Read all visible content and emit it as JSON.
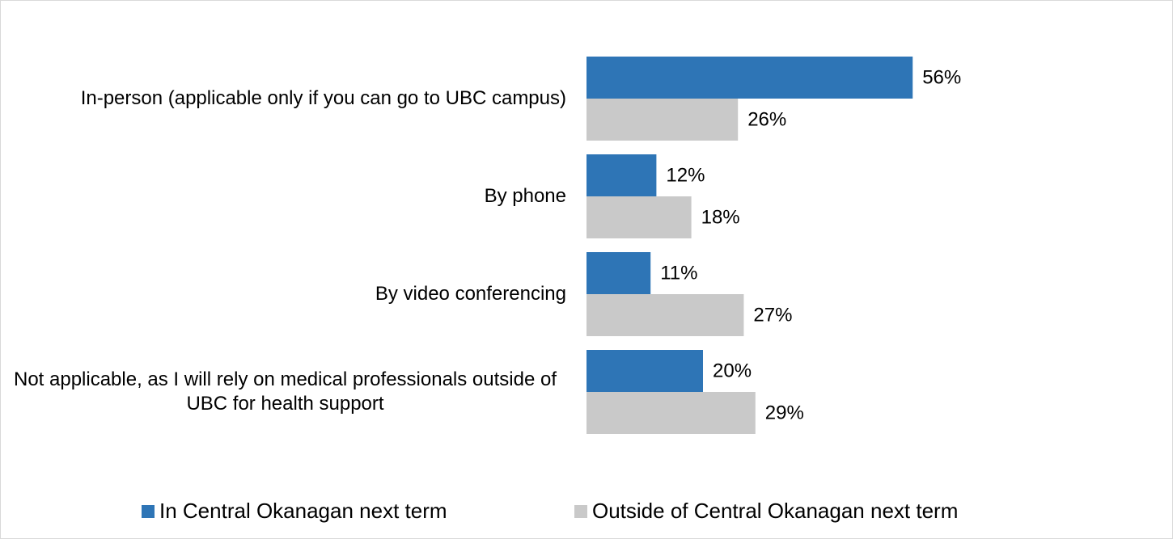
{
  "chart_data": {
    "type": "hbar",
    "categories": [
      "In-person (applicable only if you can go to UBC campus)",
      "By phone",
      "By video conferencing",
      "Not applicable, as I will rely on medical professionals outside of UBC for health support"
    ],
    "series": [
      {
        "name": "In Central Okanagan next term",
        "color": "#2e75b6",
        "values": [
          56,
          12,
          11,
          20
        ],
        "value_labels": [
          "56%",
          "12%",
          "11%",
          "20%"
        ]
      },
      {
        "name": "Outside of Central Okanagan next term",
        "color": "#c9c9c9",
        "values": [
          26,
          18,
          27,
          29
        ],
        "value_labels": [
          "26%",
          "18%",
          "27%",
          "29%"
        ]
      }
    ],
    "xlim": [
      0,
      60
    ],
    "legend": "bottom"
  }
}
